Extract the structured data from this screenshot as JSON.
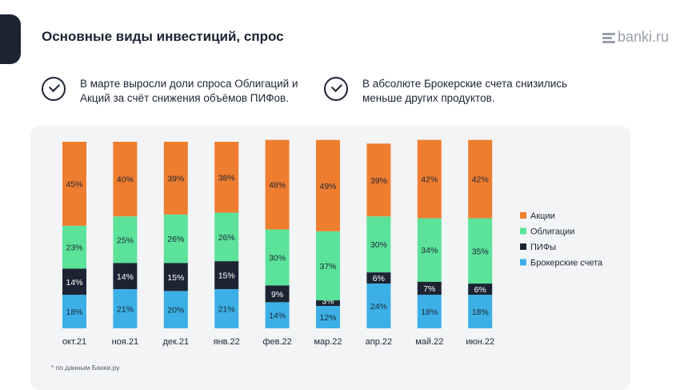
{
  "header": {
    "title": "Основные виды инвестиций, спрос",
    "logo_text": "banki.ru"
  },
  "notes": [
    {
      "icon": "check-circle-icon",
      "text": "В марте выросли доли спроса Облигаций и Акций за счёт снижения объёмов ПИФов."
    },
    {
      "icon": "check-circle-icon",
      "text": "В абсолюте Брокерские счета снизились меньше других продуктов."
    }
  ],
  "footnote": "* по данным Банки.ру",
  "colors": {
    "Брокерские счета": "#3cb0e6",
    "ПИФы": "#1c2434",
    "Облигации": "#5be39a",
    "Акции": "#ef7d30"
  },
  "chart_data": {
    "type": "bar",
    "stacked": true,
    "categories": [
      "окт.21",
      "ноя.21",
      "дек.21",
      "янв.22",
      "фев.22",
      "мар.22",
      "апр.22",
      "май.22",
      "июн.22"
    ],
    "series": [
      {
        "name": "Брокерские счета",
        "values": [
          18,
          21,
          20,
          21,
          14,
          12,
          24,
          18,
          18
        ],
        "labels": [
          "18%",
          "21%",
          "20%",
          "21%",
          "14%",
          "12%",
          "24%",
          "18%",
          "18%"
        ]
      },
      {
        "name": "ПИФы",
        "values": [
          14,
          14,
          15,
          15,
          9,
          3,
          6,
          7,
          6
        ],
        "labels": [
          "14%",
          "14%",
          "15%",
          "15%",
          "9%",
          "3%",
          "6%",
          "7%",
          "6%"
        ]
      },
      {
        "name": "Облигации",
        "values": [
          23,
          25,
          26,
          26,
          30,
          37,
          30,
          34,
          35
        ],
        "labels": [
          "23%",
          "25%",
          "26%",
          "26%",
          "30%",
          "37%",
          "30%",
          "34%",
          "35%"
        ]
      },
      {
        "name": "Акции",
        "values": [
          45,
          40,
          39,
          38,
          48,
          49,
          39,
          42,
          42
        ],
        "labels": [
          "45%",
          "40%",
          "39%",
          "38%",
          "48%",
          "49%",
          "39%",
          "42%",
          "42%"
        ]
      }
    ],
    "legend": [
      "Акции",
      "Облигации",
      "ПИФы",
      "Брокерские счета"
    ],
    "legend_position": "right",
    "grid": false,
    "ylim": [
      0,
      100
    ]
  }
}
